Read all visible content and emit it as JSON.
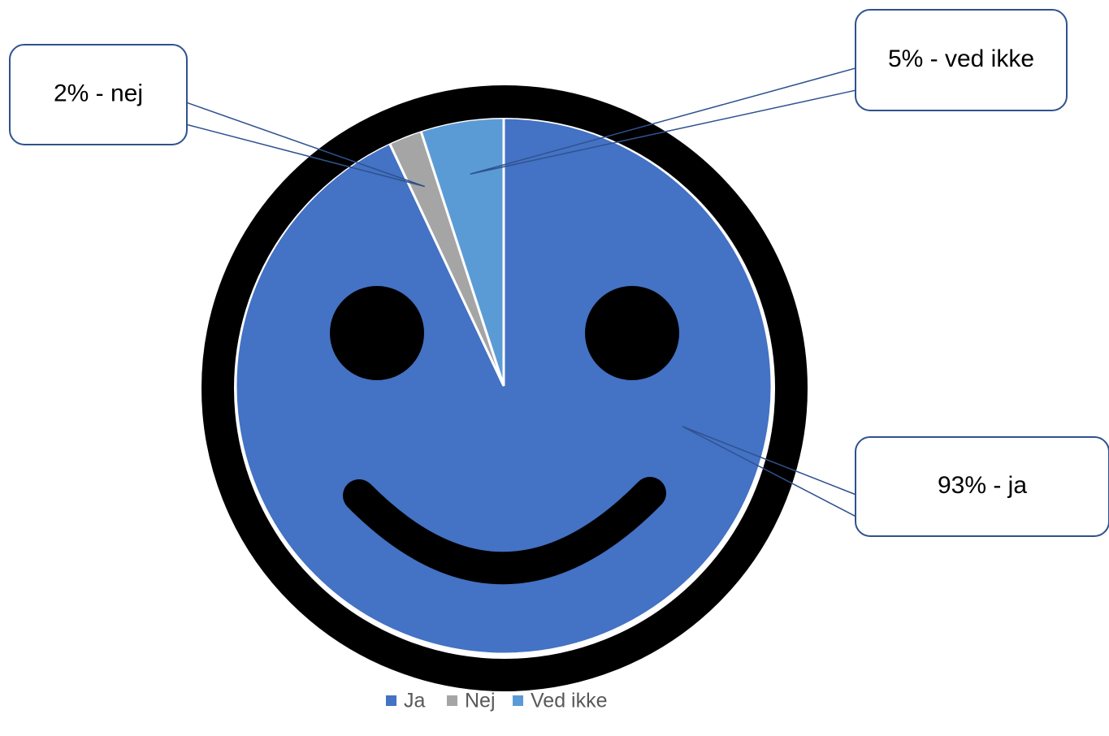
{
  "chart_data": {
    "type": "pie",
    "categories": [
      "Ja",
      "Nej",
      "Ved ikke"
    ],
    "values": [
      93,
      2,
      5
    ],
    "value_labels": [
      "93% - ja",
      "2% - nej",
      "5% - ved ikke"
    ],
    "colors": [
      "#4472c4",
      "#a5a5a5",
      "#5b9bd5"
    ],
    "legend": "bottom"
  }
}
